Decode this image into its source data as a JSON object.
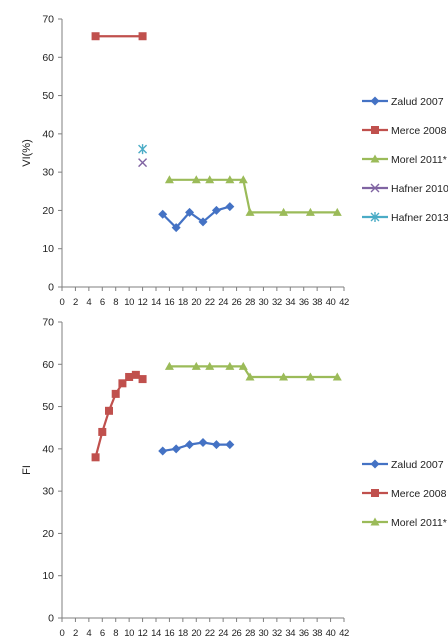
{
  "chart_data": [
    {
      "type": "line",
      "title": "",
      "xlabel": "",
      "ylabel": "VI(%)",
      "xlim": [
        0,
        42
      ],
      "ylim": [
        0,
        70
      ],
      "x_ticks": [
        0,
        2,
        4,
        6,
        8,
        10,
        12,
        14,
        16,
        18,
        20,
        22,
        24,
        26,
        28,
        30,
        32,
        34,
        36,
        38,
        40,
        42
      ],
      "y_ticks": [
        0,
        10,
        20,
        30,
        40,
        50,
        60,
        70
      ],
      "grid": false,
      "legend_position": "right",
      "series": [
        {
          "name": "Zalud 2007",
          "color": "#4472c4",
          "marker": "diamond",
          "x": [
            15,
            17,
            19,
            21,
            23,
            25
          ],
          "y": [
            19,
            15.5,
            19.5,
            17,
            20,
            21
          ]
        },
        {
          "name": "Merce 2008",
          "color": "#c0504d",
          "marker": "square",
          "x": [
            5,
            12
          ],
          "y": [
            65.5,
            65.5
          ]
        },
        {
          "name": "Morel 2011*",
          "color": "#9bbb59",
          "marker": "triangle",
          "x": [
            16,
            20,
            22,
            25,
            27,
            28,
            33,
            37,
            41
          ],
          "y": [
            28,
            28,
            28,
            28,
            28,
            19.5,
            19.5,
            19.5,
            19.5
          ]
        },
        {
          "name": "Hafner 2010",
          "color": "#8064a2",
          "marker": "x",
          "x": [
            12
          ],
          "y": [
            32.5
          ]
        },
        {
          "name": "Hafner 2013",
          "color": "#4bacc6",
          "marker": "star",
          "x": [
            12
          ],
          "y": [
            36
          ]
        }
      ]
    },
    {
      "type": "line",
      "title": "",
      "xlabel": "",
      "ylabel": "FI",
      "xlim": [
        0,
        42
      ],
      "ylim": [
        0,
        70
      ],
      "x_ticks": [
        0,
        2,
        4,
        6,
        8,
        10,
        12,
        14,
        16,
        18,
        20,
        22,
        24,
        26,
        28,
        30,
        32,
        34,
        36,
        38,
        40,
        42
      ],
      "y_ticks": [
        0,
        10,
        20,
        30,
        40,
        50,
        60,
        70
      ],
      "grid": false,
      "legend_position": "right",
      "series": [
        {
          "name": "Zalud 2007",
          "color": "#4472c4",
          "marker": "diamond",
          "x": [
            15,
            17,
            19,
            21,
            23,
            25
          ],
          "y": [
            39.5,
            40,
            41,
            41.5,
            41,
            41
          ]
        },
        {
          "name": "Merce 2008",
          "color": "#c0504d",
          "marker": "square",
          "x": [
            5,
            6,
            7,
            8,
            9,
            10,
            11,
            12
          ],
          "y": [
            38,
            44,
            49,
            53,
            55.5,
            57,
            57.5,
            56.5
          ]
        },
        {
          "name": "Morel 2011*",
          "color": "#9bbb59",
          "marker": "triangle",
          "x": [
            16,
            20,
            22,
            25,
            27,
            28,
            33,
            37,
            41
          ],
          "y": [
            59.5,
            59.5,
            59.5,
            59.5,
            59.5,
            57,
            57,
            57,
            57
          ]
        }
      ]
    }
  ]
}
